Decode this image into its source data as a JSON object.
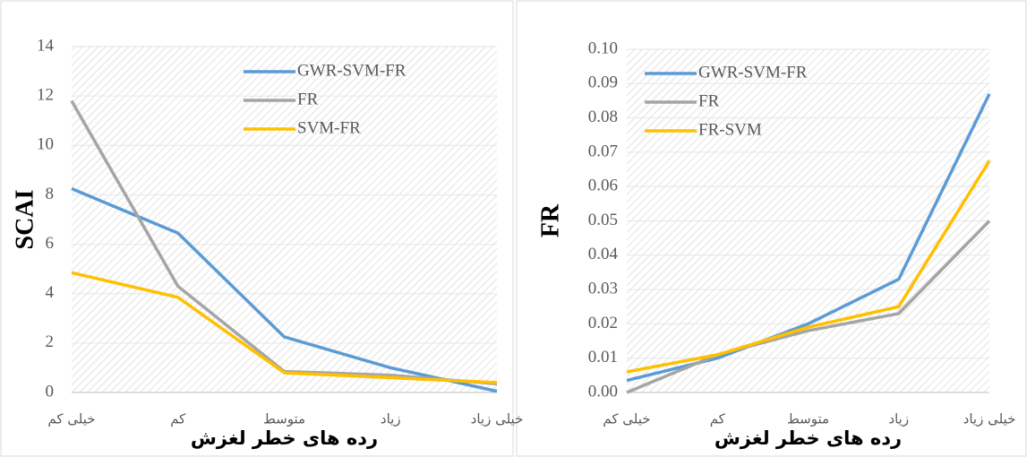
{
  "chart_data": [
    {
      "type": "line",
      "x_label": "رده های خطر لغزش",
      "y_label": "SCAI",
      "categories": [
        "خیلی کم",
        "کم",
        "متوسط",
        "زیاد",
        "خیلی زیاد"
      ],
      "ylim": [
        0,
        14
      ],
      "yticks": [
        0,
        2,
        4,
        6,
        8,
        10,
        12,
        14
      ],
      "series": [
        {
          "name": "GWR-SVM-FR",
          "color": "#5b9bd5",
          "values": [
            8.25,
            6.45,
            2.25,
            1.0,
            0.05
          ]
        },
        {
          "name": "FR",
          "color": "#a5a5a5",
          "values": [
            11.8,
            4.3,
            0.85,
            0.7,
            0.35
          ]
        },
        {
          "name": "SVM-FR",
          "color": "#ffc000",
          "values": [
            4.85,
            3.85,
            0.8,
            0.6,
            0.4
          ]
        }
      ]
    },
    {
      "type": "line",
      "x_label": "رده های خطر لغزش",
      "y_label": "FR",
      "categories": [
        "خیلی کم",
        "کم",
        "متوسط",
        "زیاد",
        "خیلی زیاد"
      ],
      "ylim": [
        0,
        0.1
      ],
      "yticks": [
        {
          "value": 0,
          "label": "0.00"
        },
        {
          "value": 0.01,
          "label": "0.01"
        },
        {
          "value": 0.02,
          "label": "0.02"
        },
        {
          "value": 0.03,
          "label": "0.03"
        },
        {
          "value": 0.04,
          "label": "0.04"
        },
        {
          "value": 0.05,
          "label": "0.05"
        },
        {
          "value": 0.06,
          "label": "0.06"
        },
        {
          "value": 0.07,
          "label": "0.07"
        },
        {
          "value": 0.08,
          "label": "0.08"
        },
        {
          "value": 0.09,
          "label": "0.09"
        },
        {
          "value": 0.1,
          "label": "0.10"
        }
      ],
      "series": [
        {
          "name": "GWR-SVM-FR",
          "color": "#5b9bd5",
          "values": [
            0.0035,
            0.01,
            0.02,
            0.033,
            0.087
          ]
        },
        {
          "name": "FR",
          "color": "#a5a5a5",
          "values": [
            0.0,
            0.011,
            0.018,
            0.023,
            0.05
          ]
        },
        {
          "name": "FR-SVM",
          "color": "#ffc000",
          "values": [
            0.006,
            0.011,
            0.019,
            0.025,
            0.0675
          ]
        }
      ]
    }
  ]
}
